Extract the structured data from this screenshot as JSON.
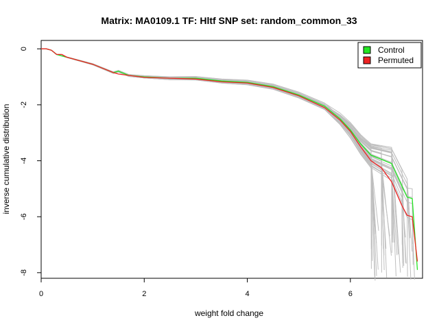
{
  "chart_data": {
    "type": "line",
    "title": "Matrix: MA0109.1 TF: Hltf SNP set: random_common_33",
    "xlabel": "weight fold change",
    "ylabel": "inverse cumulative distribution",
    "xlim": [
      0,
      7.4
    ],
    "ylim": [
      -8.2,
      0.3
    ],
    "xticks": [
      0,
      2,
      4,
      6
    ],
    "yticks": [
      0,
      -2,
      -4,
      -6,
      -8
    ],
    "grid": false,
    "legend_position": "top-right",
    "legend": [
      {
        "label": "Control",
        "color": "#22e622"
      },
      {
        "label": "Permuted",
        "color": "#ee2222"
      }
    ],
    "background_series_color": "#bebebe",
    "series": [
      {
        "name": "Control",
        "color": "#22e622",
        "x": [
          0.0,
          0.1,
          0.2,
          0.3,
          0.4,
          0.5,
          0.6,
          0.7,
          0.8,
          0.9,
          1.0,
          1.2,
          1.4,
          1.5,
          1.7,
          2.0,
          2.5,
          3.0,
          3.5,
          4.0,
          4.5,
          5.0,
          5.5,
          5.8,
          6.0,
          6.2,
          6.4,
          6.6,
          6.8,
          7.0,
          7.1,
          7.2,
          7.3
        ],
        "y": [
          0.0,
          0.0,
          -0.05,
          -0.2,
          -0.25,
          -0.3,
          -0.35,
          -0.4,
          -0.45,
          -0.5,
          -0.55,
          -0.7,
          -0.85,
          -0.8,
          -0.95,
          -1.0,
          -1.05,
          -1.05,
          -1.15,
          -1.2,
          -1.35,
          -1.65,
          -2.05,
          -2.5,
          -2.9,
          -3.4,
          -3.8,
          -3.95,
          -4.1,
          -4.9,
          -5.3,
          -5.35,
          -7.9
        ]
      },
      {
        "name": "Permuted",
        "color": "#ee2222",
        "x": [
          0.0,
          0.1,
          0.2,
          0.3,
          0.4,
          0.5,
          0.6,
          0.7,
          0.8,
          0.9,
          1.0,
          1.2,
          1.4,
          1.5,
          1.7,
          2.0,
          2.5,
          3.0,
          3.5,
          4.0,
          4.5,
          5.0,
          5.5,
          5.8,
          6.0,
          6.2,
          6.4,
          6.6,
          6.8,
          7.0,
          7.1,
          7.2,
          7.3
        ],
        "y": [
          0.0,
          0.0,
          -0.05,
          -0.2,
          -0.2,
          -0.3,
          -0.35,
          -0.4,
          -0.45,
          -0.5,
          -0.55,
          -0.7,
          -0.85,
          -0.9,
          -0.95,
          -1.02,
          -1.05,
          -1.08,
          -1.18,
          -1.22,
          -1.38,
          -1.68,
          -2.1,
          -2.55,
          -2.95,
          -3.5,
          -4.0,
          -4.25,
          -4.75,
          -5.6,
          -5.95,
          -6.0,
          -7.6
        ]
      }
    ]
  }
}
